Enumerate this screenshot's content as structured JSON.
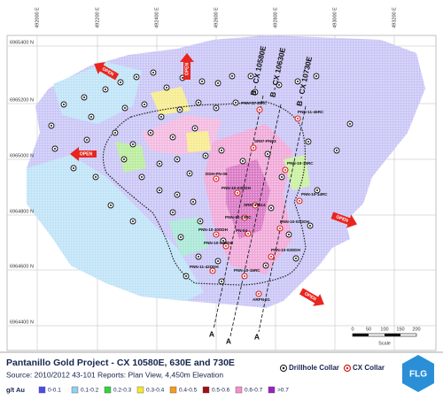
{
  "map": {
    "eastings": [
      "492000 E",
      "492200 E",
      "492400 E",
      "492600 E",
      "492800 E",
      "493000 E",
      "493200 E"
    ],
    "northings": [
      "6965400 N",
      "6965200 N",
      "6965000 N",
      "6964800 N",
      "6964600 N",
      "6964400 N"
    ],
    "sections": [
      "B - CX 10580E",
      "B - CX 10630E",
      "B - CX 10730E"
    ],
    "section_ends": [
      "A",
      "A",
      "A"
    ],
    "open_labels": [
      "OPEN",
      "OPEN",
      "OPEN",
      "OPEN",
      "OPEN"
    ],
    "drillholes": [
      "PNN-11-45RC",
      "PNN-11-46RC",
      "SR97-PN03",
      "PNN-10-15RC",
      "DDH-PN-06",
      "PNN-10-03DDH",
      "PNN-10-14RC",
      "SR97-PN14",
      "PNN-10-01DDH",
      "PNN-10-17RC",
      "PNN-10-30DDH",
      "PN-04",
      "PNN-10-04DDH",
      "PNN-10-02DDH",
      "PNN-11-42DDH",
      "PNN-10-16RC",
      "ARPN-01"
    ],
    "scale": {
      "ticks": [
        "0",
        "50",
        "100",
        "150",
        "200"
      ],
      "label": "Scale"
    }
  },
  "footer": {
    "title": "Pantanillo Gold Project - CX 10580E, 630E and 730E",
    "source": "Source: 2010/2012 43-101 Reports: Plan View, 4,450m Elevation",
    "legend": {
      "drillhole": "Drillhole Collar",
      "cx": "CX Collar",
      "grade_label": "g/t Au",
      "grades": [
        "0-0.1",
        "0.1-0.2",
        "0.2-0.3",
        "0.3-0.4",
        "0.4-0.5",
        "0.5-0.6",
        "0.6-0.7",
        ">0.7"
      ]
    },
    "logo": "FLG"
  }
}
